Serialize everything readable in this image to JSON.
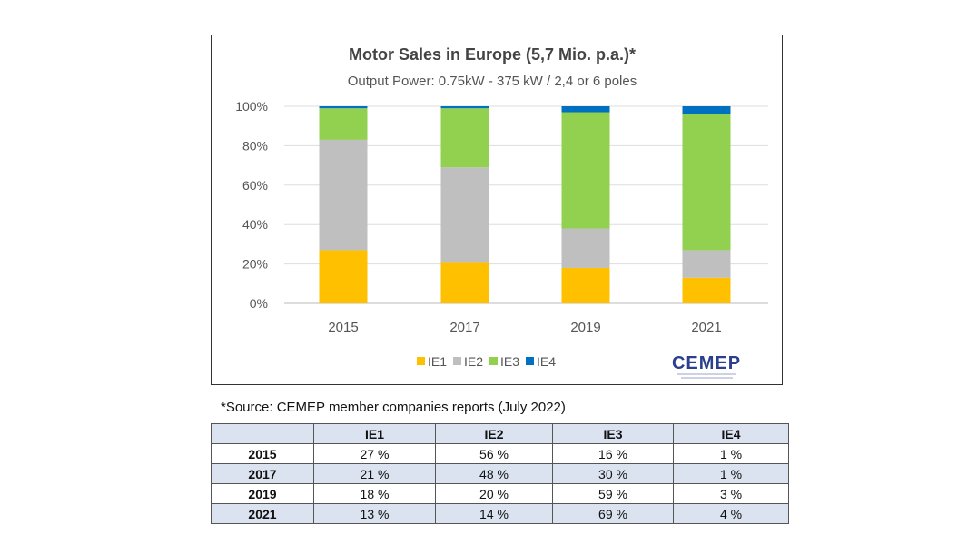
{
  "chart_data": {
    "type": "stacked-bar",
    "title": "Motor Sales in Europe (5,7 Mio. p.a.)*",
    "subtitle": "Output Power: 0.75kW - 375 kW / 2,4 or 6 poles",
    "categories": [
      "2015",
      "2017",
      "2019",
      "2021"
    ],
    "series": [
      {
        "name": "IE1",
        "color": "#FFC000",
        "values": [
          27,
          21,
          18,
          13
        ]
      },
      {
        "name": "IE2",
        "color": "#BFBFBF",
        "values": [
          56,
          48,
          20,
          14
        ]
      },
      {
        "name": "IE3",
        "color": "#92D050",
        "values": [
          16,
          30,
          59,
          69
        ]
      },
      {
        "name": "IE4",
        "color": "#0070C0",
        "values": [
          1,
          1,
          3,
          4
        ]
      }
    ],
    "ylim": [
      0,
      100
    ],
    "yticks": [
      "0%",
      "20%",
      "40%",
      "60%",
      "80%",
      "100%"
    ],
    "grid": true,
    "legend": "bottom",
    "logo": "CEMEP"
  },
  "source_note": "*Source: CEMEP member companies reports (July 2022)",
  "table": {
    "headers": [
      "",
      "IE1",
      "IE2",
      "IE3",
      "IE4"
    ],
    "rows": [
      [
        "2015",
        "27 %",
        "56 %",
        "16 %",
        "1 %"
      ],
      [
        "2017",
        "21 %",
        "48 %",
        "30 %",
        "1 %"
      ],
      [
        "2019",
        "18 %",
        "20 %",
        "59 %",
        "3 %"
      ],
      [
        "2021",
        "13 %",
        "14 %",
        "69 %",
        "4 %"
      ]
    ]
  }
}
